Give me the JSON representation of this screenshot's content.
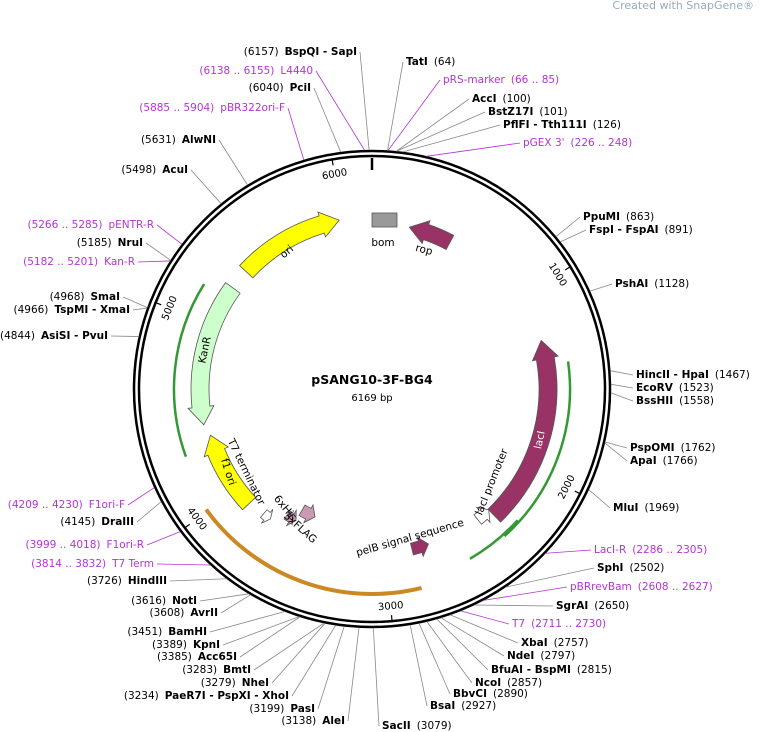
{
  "watermark": "Created with SnapGene®",
  "title": "pSANG10-3F-BG4",
  "subtitle": "6169 bp",
  "map_ticks": [
    1000,
    2000,
    3000,
    4000,
    5000,
    6000
  ],
  "sites": [
    {
      "name": "BspQI - SapI",
      "position": "(6157)"
    },
    {
      "name": "TatI",
      "position": "(64)"
    },
    {
      "name": "PciI",
      "position": "(6040)"
    },
    {
      "name": "AccI",
      "position": "(100)"
    },
    {
      "name": "BstZ17I",
      "position": "(101)"
    },
    {
      "name": "PflFI - Tth111I",
      "position": "(126)"
    },
    {
      "name": "AlwNI",
      "position": "(5631)"
    },
    {
      "name": "AcuI",
      "position": "(5498)"
    },
    {
      "name": "PpuMI",
      "position": "(863)"
    },
    {
      "name": "FspI - FspAI",
      "position": "(891)"
    },
    {
      "name": "NruI",
      "position": "(5185)"
    },
    {
      "name": "PshAI",
      "position": "(1128)"
    },
    {
      "name": "SmaI",
      "position": "(4968)"
    },
    {
      "name": "TspMI - XmaI",
      "position": "(4966)"
    },
    {
      "name": "AsiSI - PvuI",
      "position": "(4844)"
    },
    {
      "name": "HincII - HpaI",
      "position": "(1467)"
    },
    {
      "name": "EcoRV",
      "position": "(1523)"
    },
    {
      "name": "BssHII",
      "position": "(1558)"
    },
    {
      "name": "PspOMI",
      "position": "(1762)"
    },
    {
      "name": "ApaI",
      "position": "(1766)"
    },
    {
      "name": "MluI",
      "position": "(1969)"
    },
    {
      "name": "DraIII",
      "position": "(4145)"
    },
    {
      "name": "SphI",
      "position": "(2502)"
    },
    {
      "name": "SgrAI",
      "position": "(2650)"
    },
    {
      "name": "HindIII",
      "position": "(3726)"
    },
    {
      "name": "NotI",
      "position": "(3616)"
    },
    {
      "name": "AvrII",
      "position": "(3608)"
    },
    {
      "name": "XbaI",
      "position": "(2757)"
    },
    {
      "name": "BamHI",
      "position": "(3451)"
    },
    {
      "name": "NdeI",
      "position": "(2797)"
    },
    {
      "name": "KpnI",
      "position": "(3389)"
    },
    {
      "name": "BfuAI - BspMI",
      "position": "(2815)"
    },
    {
      "name": "Acc65I",
      "position": "(3385)"
    },
    {
      "name": "NcoI",
      "position": "(2857)"
    },
    {
      "name": "BmtI",
      "position": "(3283)"
    },
    {
      "name": "BbvCI",
      "position": "(2890)"
    },
    {
      "name": "NheI",
      "position": "(3279)"
    },
    {
      "name": "PaeR7I - PspXI - XhoI",
      "position": "(3234)"
    },
    {
      "name": "BsaI",
      "position": "(2927)"
    },
    {
      "name": "PasI",
      "position": "(3199)"
    },
    {
      "name": "AleI",
      "position": "(3138)"
    },
    {
      "name": "SacII",
      "position": "(3079)"
    }
  ],
  "primers": [
    {
      "name": "L4440",
      "range": "(6138 .. 6155)"
    },
    {
      "name": "pRS-marker",
      "range": "(66 .. 85)"
    },
    {
      "name": "pBR322ori-F",
      "range": "(5885 .. 5904)"
    },
    {
      "name": "pGEX 3'",
      "range": "(226 .. 248)"
    },
    {
      "name": "pENTR-R",
      "range": "(5266 .. 5285)"
    },
    {
      "name": "Kan-R",
      "range": "(5182 .. 5201)"
    },
    {
      "name": "F1ori-F",
      "range": "(4209 .. 4230)"
    },
    {
      "name": "F1ori-R",
      "range": "(3999 .. 4018)"
    },
    {
      "name": "T7 Term",
      "range": "(3814 .. 3832)"
    },
    {
      "name": "LacI-R",
      "range": "(2286 .. 2305)"
    },
    {
      "name": "pBRrevBam",
      "range": "(2608 .. 2627)"
    },
    {
      "name": "T7",
      "range": "(2711 .. 2730)"
    }
  ],
  "features": [
    {
      "label": "ori",
      "color": "#ffff00"
    },
    {
      "label": "KanR",
      "color": "#ccffcc"
    },
    {
      "label": "f1 ori",
      "color": "#ffff00"
    },
    {
      "label": "lacI",
      "color": "#993366"
    },
    {
      "label": "rop",
      "color": "#993366"
    },
    {
      "label": "bom",
      "color": "#999999"
    },
    {
      "label": "lacI promoter",
      "color": "#ffffff"
    },
    {
      "label": "T7 terminator",
      "color": "#ffffff"
    },
    {
      "label": "6xHis",
      "color": "#cc99b2"
    },
    {
      "label": "3xFLAG",
      "color": "#cc99b2"
    },
    {
      "label": "pelB signal sequence",
      "color": "#993366"
    }
  ]
}
